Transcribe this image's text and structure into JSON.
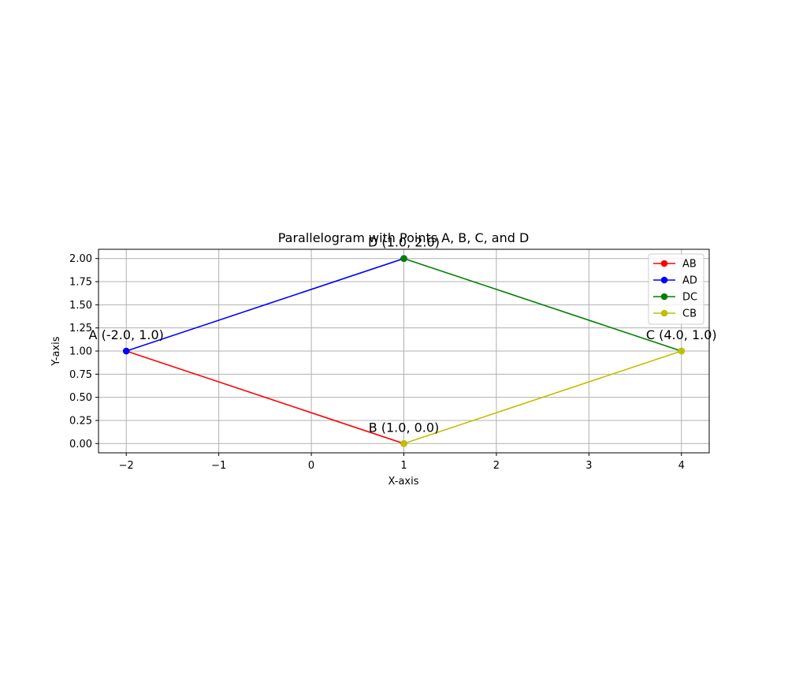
{
  "chart_data": {
    "type": "line",
    "title": "Parallelogram with Points A, B, C, and D",
    "xlabel": "X-axis",
    "ylabel": "Y-axis",
    "xlim": [
      -2.3,
      4.3
    ],
    "ylim": [
      -0.1,
      2.1
    ],
    "xticks": [
      -2,
      -1,
      0,
      1,
      2,
      3,
      4
    ],
    "xtick_labels": [
      "−2",
      "−1",
      "0",
      "1",
      "2",
      "3",
      "4"
    ],
    "yticks": [
      0,
      0.25,
      0.5,
      0.75,
      1,
      1.25,
      1.5,
      1.75,
      2
    ],
    "ytick_labels": [
      "0.00",
      "0.25",
      "0.50",
      "0.75",
      "1.00",
      "1.25",
      "1.50",
      "1.75",
      "2.00"
    ],
    "grid": true,
    "legend_position": "top-right",
    "series": [
      {
        "name": "AB",
        "color": "#ff0000",
        "x": [
          -2,
          1
        ],
        "y": [
          1,
          0
        ]
      },
      {
        "name": "AD",
        "color": "#0000ff",
        "x": [
          -2,
          1
        ],
        "y": [
          1,
          2
        ]
      },
      {
        "name": "DC",
        "color": "#008000",
        "x": [
          1,
          4
        ],
        "y": [
          2,
          1
        ]
      },
      {
        "name": "CB",
        "color": "#bfbf00",
        "x": [
          4,
          1
        ],
        "y": [
          1,
          0
        ]
      }
    ],
    "annotations": [
      {
        "text": "A (-2.0, 1.0)",
        "x": -2,
        "y": 1
      },
      {
        "text": "B (1.0, 0.0)",
        "x": 1,
        "y": 0
      },
      {
        "text": "C (4.0, 1.0)",
        "x": 4,
        "y": 1
      },
      {
        "text": "D (1.0, 2.0)",
        "x": 1,
        "y": 2
      }
    ]
  }
}
